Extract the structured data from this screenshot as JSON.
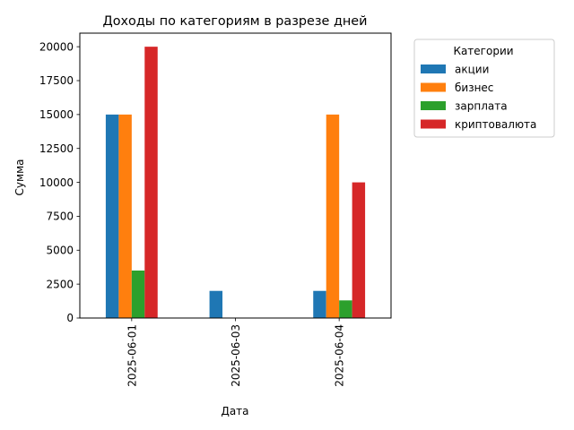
{
  "chart_data": {
    "type": "bar",
    "title": "Доходы по категориям в разрезе дней",
    "xlabel": "Дата",
    "ylabel": "Сумма",
    "categories": [
      "2025-06-01",
      "2025-06-03",
      "2025-06-04"
    ],
    "series": [
      {
        "name": "акции",
        "color": "#1f77b4",
        "values": [
          15000,
          2000,
          2000
        ]
      },
      {
        "name": "бизнес",
        "color": "#ff7f0e",
        "values": [
          15000,
          0,
          15000
        ]
      },
      {
        "name": "зарплата",
        "color": "#2ca02c",
        "values": [
          3500,
          0,
          1300
        ]
      },
      {
        "name": "криптовалюта",
        "color": "#d62728",
        "values": [
          20000,
          0,
          10000
        ]
      }
    ],
    "ylim": [
      0,
      21000
    ],
    "yticks": [
      0,
      2500,
      5000,
      7500,
      10000,
      12500,
      15000,
      17500,
      20000
    ],
    "ytick_labels": [
      "0",
      "2500",
      "5000",
      "7500",
      "10000",
      "12500",
      "15000",
      "17500",
      "20000"
    ],
    "grid": false,
    "legend": {
      "title": "Категории",
      "placement": "outside-upper-right"
    }
  }
}
